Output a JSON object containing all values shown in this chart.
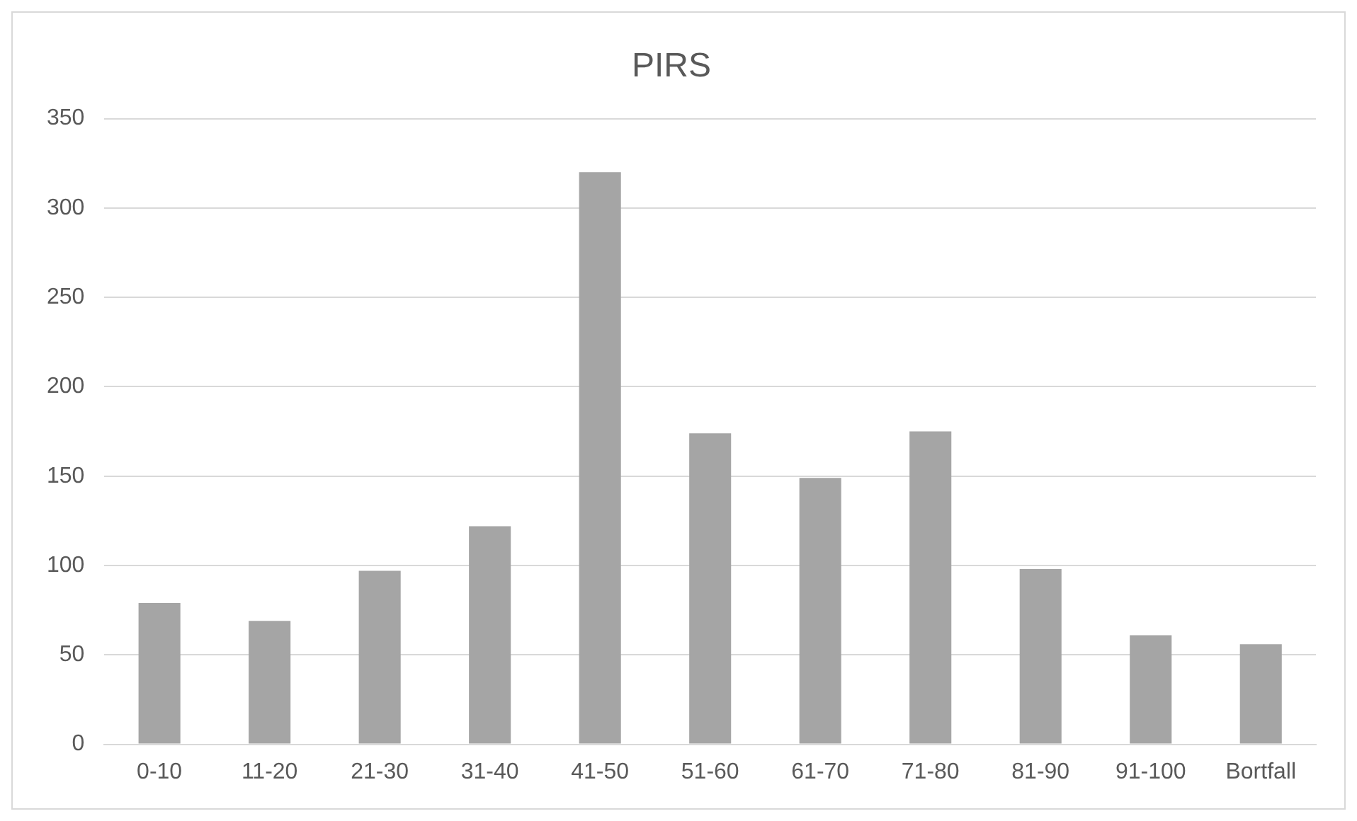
{
  "chart_data": {
    "type": "bar",
    "title": "PIRS",
    "categories": [
      "0-10",
      "11-20",
      "21-30",
      "31-40",
      "41-50",
      "51-60",
      "61-70",
      "71-80",
      "81-90",
      "91-100",
      "Bortfall"
    ],
    "values": [
      79,
      69,
      97,
      122,
      320,
      174,
      149,
      175,
      98,
      61,
      56
    ],
    "color": "#a5a5a5",
    "ylim": [
      0,
      350
    ],
    "yticks": [
      0,
      50,
      100,
      150,
      200,
      250,
      300,
      350
    ],
    "grid": "y",
    "legend": false
  }
}
